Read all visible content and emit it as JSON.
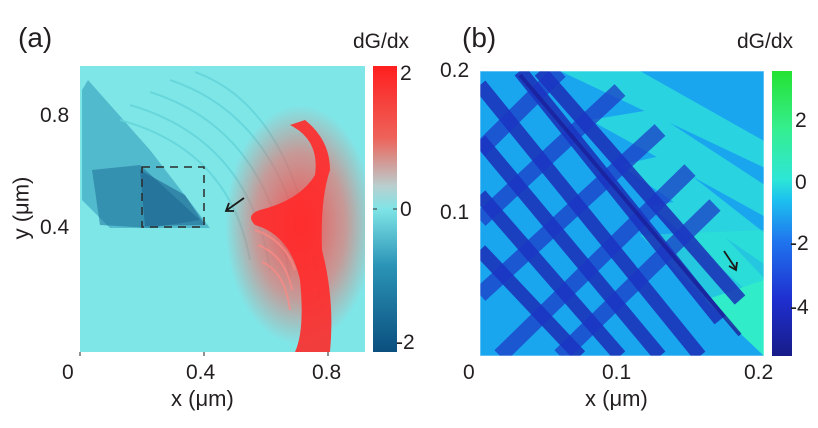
{
  "chart_data": [
    {
      "type": "heatmap",
      "panel_label": "(a)",
      "xlabel": "x (μm)",
      "ylabel": "y (μm)",
      "xlim": [
        0,
        0.92
      ],
      "ylim": [
        0,
        0.92
      ],
      "xticks": [
        "0",
        "0.4",
        "0.8"
      ],
      "yticks": [
        "0.4",
        "0.8"
      ],
      "colorbar": {
        "title": "dG/dx",
        "ticks": [
          "2",
          "0",
          "-2"
        ],
        "range": [
          -2.3,
          2.3
        ],
        "colors": [
          "#0a4f7e",
          "#3aa9c6",
          "#7fe6e8",
          "#e86a60",
          "#ff1f1f"
        ]
      },
      "annotations": [
        "dashed-box",
        "arrow"
      ]
    },
    {
      "type": "heatmap",
      "panel_label": "(b)",
      "xlabel": "x (μm)",
      "ylabel": "",
      "xlim": [
        0,
        0.2
      ],
      "ylim": [
        0,
        0.2
      ],
      "xticks": [
        "0",
        "0.1",
        "0.2"
      ],
      "yticks": [
        "0.2",
        "0.1"
      ],
      "colorbar": {
        "title": "dG/dx",
        "ticks": [
          "2",
          "0",
          "-2",
          "-4"
        ],
        "range": [
          -5.5,
          3.8
        ],
        "colors": [
          "#161e8a",
          "#1d3fe0",
          "#1aa0f0",
          "#28e0d8",
          "#38f090",
          "#22e030"
        ]
      },
      "annotations": [
        "arrow"
      ]
    }
  ]
}
